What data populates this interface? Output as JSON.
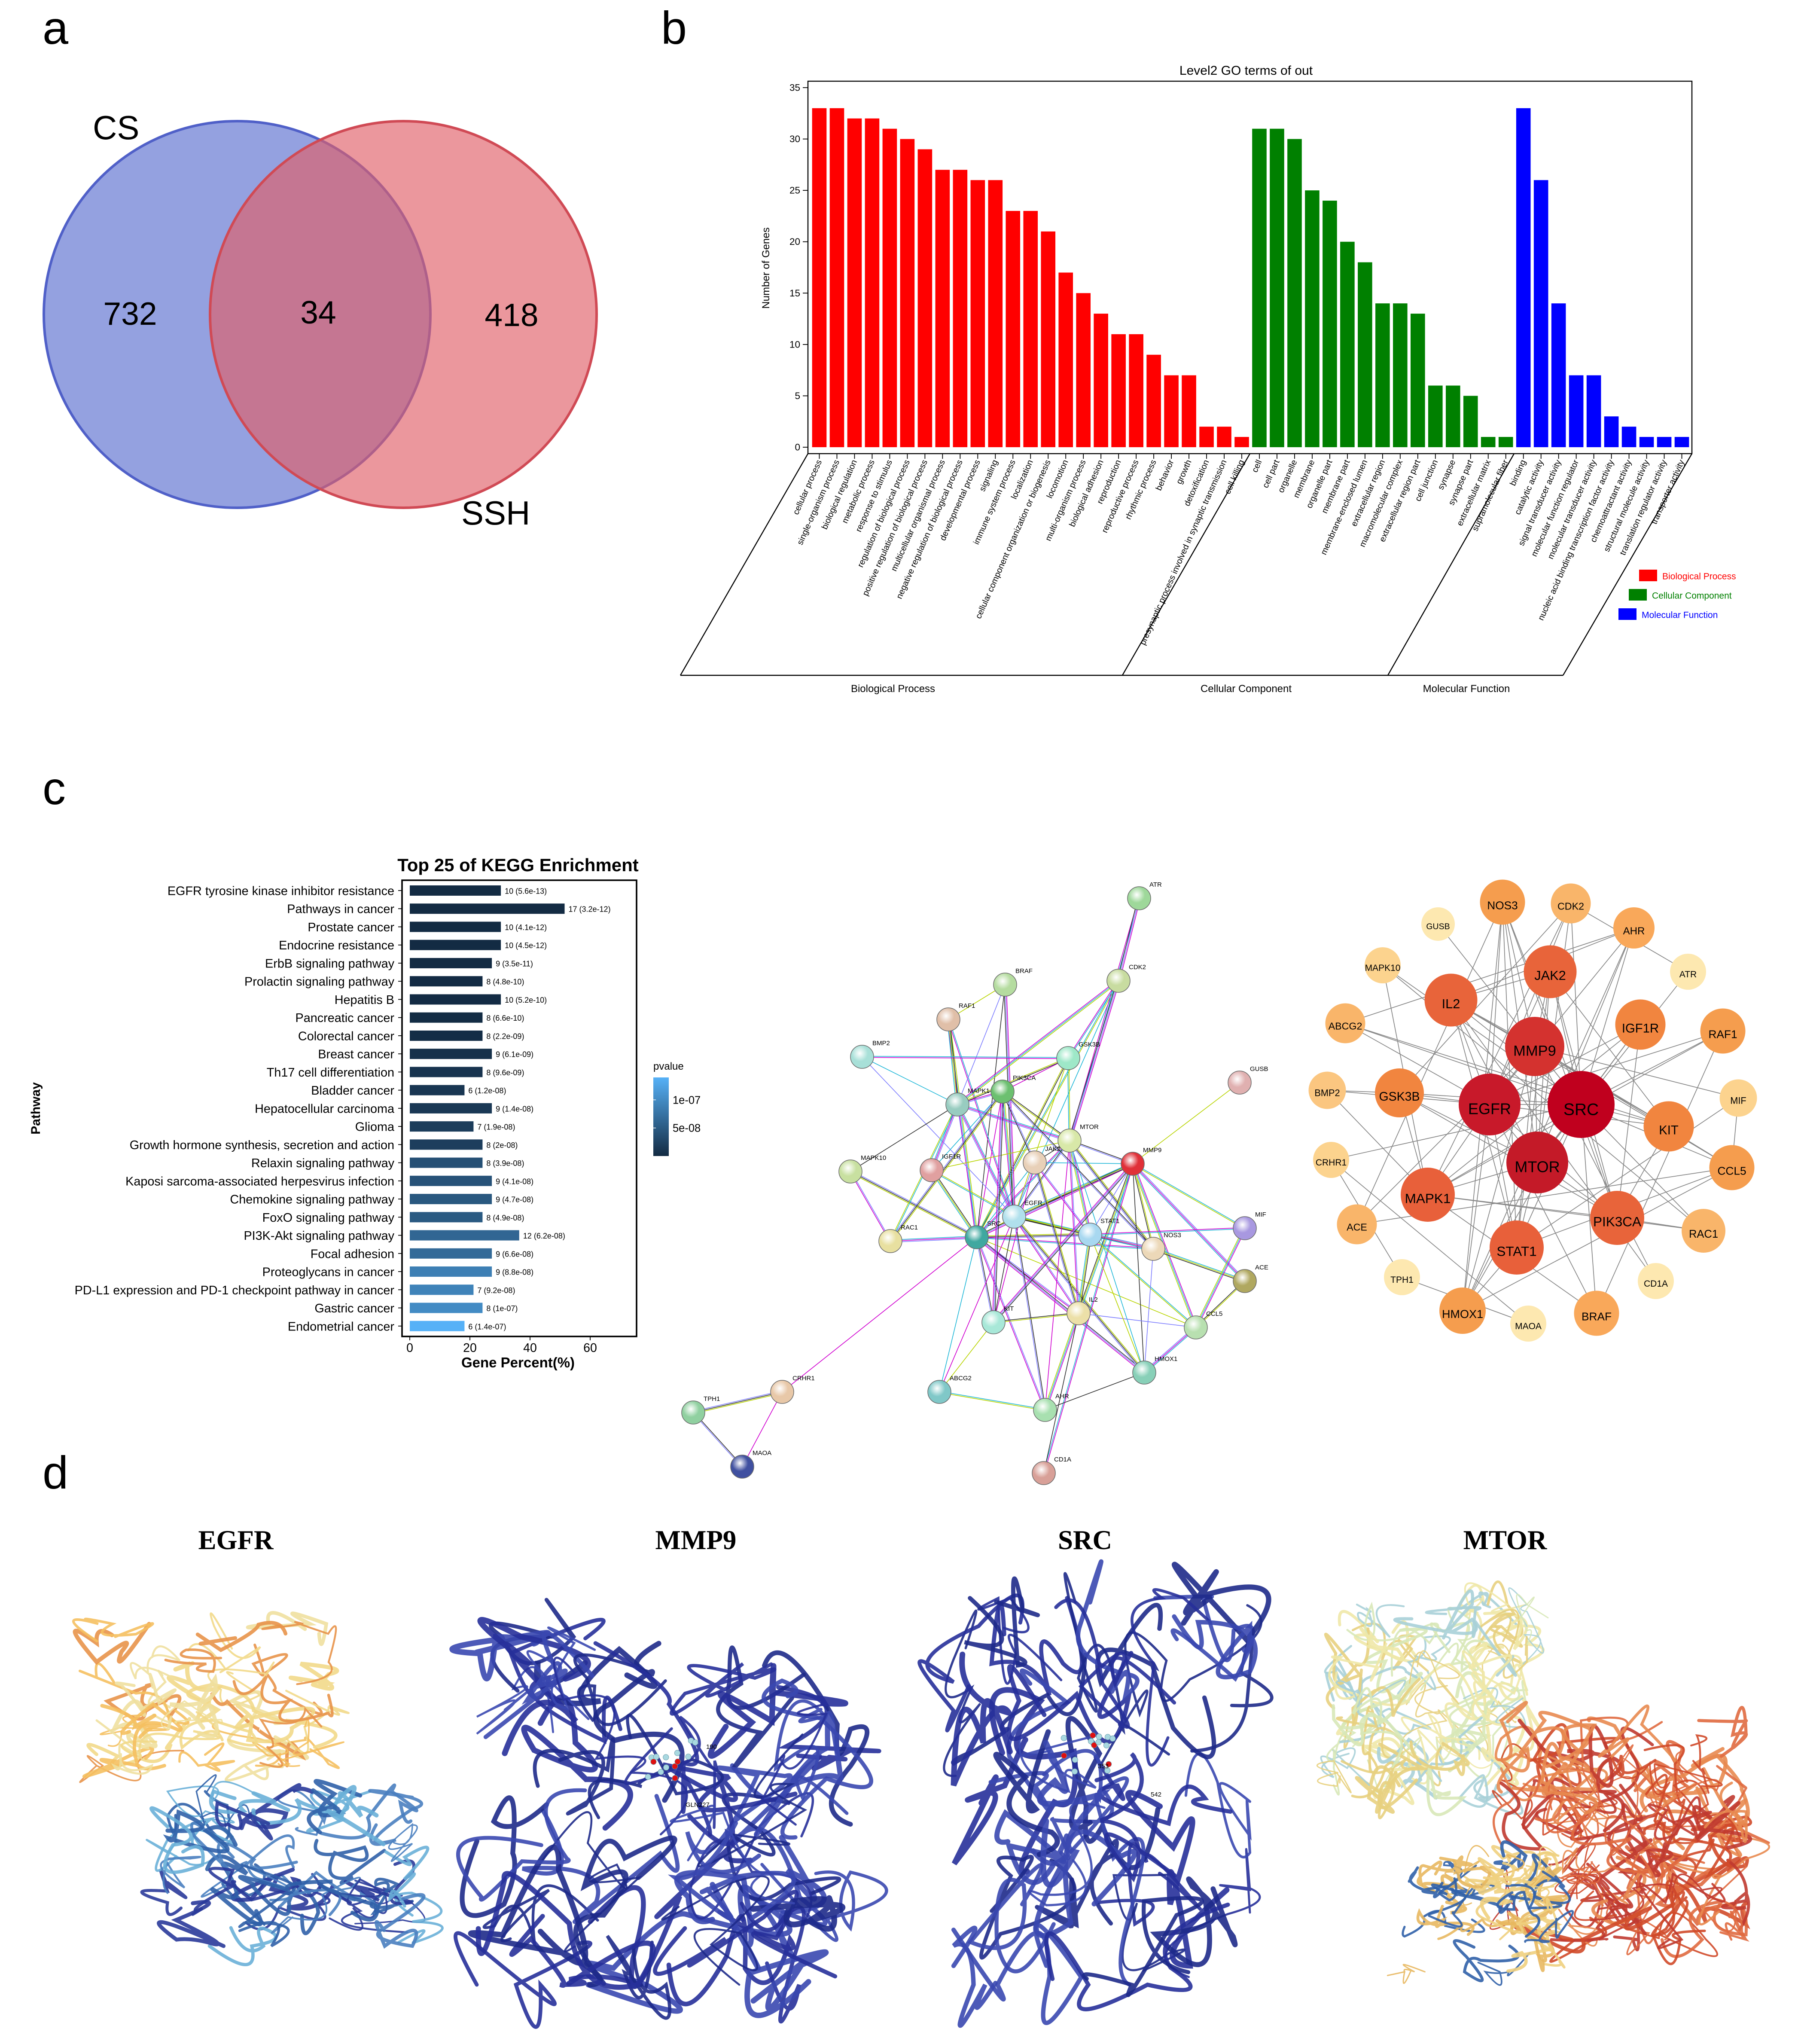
{
  "panels": {
    "a": "a",
    "b": "b",
    "c": "c",
    "d": "d"
  },
  "venn": {
    "sets": [
      {
        "name": "CS",
        "only_count": "732",
        "color": "#5b6fd0"
      },
      {
        "name": "SSH",
        "only_count": "418",
        "color": "#e06068"
      }
    ],
    "intersection": "34"
  },
  "chart_data": [
    {
      "type": "bar",
      "title": "Level2 GO terms of out",
      "ylabel": "Number of Genes",
      "ylim": [
        0,
        35
      ],
      "yticks": [
        0,
        5,
        10,
        15,
        20,
        25,
        30,
        35
      ],
      "grid": false,
      "legend_position": "bottom-right",
      "series": [
        {
          "name": "Biological Process",
          "color": "#ff0000",
          "categories": [
            "cellular process",
            "single-organism process",
            "biological regulation",
            "metabolic process",
            "response to stimulus",
            "regulation of biological process",
            "positive regulation of biological process",
            "multicellular organismal process",
            "negative regulation of biological process",
            "developmental process",
            "signaling",
            "immune system process",
            "localization",
            "cellular component organization or biogenesis",
            "locomotion",
            "multi-organism process",
            "biological adhesion",
            "reproduction",
            "reproductive process",
            "rhythmic process",
            "behavior",
            "growth",
            "detoxification",
            "presynaptic process involved in synaptic transmission",
            "cell killing"
          ],
          "values": [
            33,
            33,
            32,
            32,
            31,
            30,
            29,
            27,
            27,
            26,
            26,
            23,
            23,
            21,
            17,
            15,
            13,
            11,
            11,
            9,
            7,
            7,
            2,
            2,
            1
          ]
        },
        {
          "name": "Cellular Component",
          "color": "#008000",
          "categories": [
            "cell",
            "cell part",
            "organelle",
            "membrane",
            "organelle part",
            "membrane part",
            "membrane-enclosed lumen",
            "extracellular region",
            "macromolecular complex",
            "extracellular region part",
            "cell junction",
            "synapse",
            "synapse part",
            "extracellular matrix",
            "supramolecular fiber"
          ],
          "values": [
            31,
            31,
            30,
            25,
            24,
            20,
            18,
            14,
            14,
            13,
            6,
            6,
            5,
            1,
            1
          ]
        },
        {
          "name": "Molecular Function",
          "color": "#0000ff",
          "categories": [
            "binding",
            "catalytic activity",
            "signal transducer activity",
            "molecular function regulator",
            "molecular transducer activity",
            "nucleic acid binding transcription factor activity",
            "chemoattractant activity",
            "structural molecule activity",
            "translation regulator activity",
            "transporter activity"
          ],
          "values": [
            33,
            26,
            14,
            7,
            7,
            3,
            2,
            1,
            1,
            1
          ]
        }
      ]
    },
    {
      "type": "bar",
      "orientation": "horizontal",
      "title": "Top 25 of KEGG Enrichment",
      "xlabel": "Gene Percent(%)",
      "ylabel": "Pathway",
      "xticks": [
        0,
        20,
        40,
        60
      ],
      "xlim": [
        0,
        75
      ],
      "color_legend": {
        "title": "pvalue",
        "ticks": [
          "1e-07",
          "5e-08"
        ],
        "tick_values": [
          1e-07,
          5e-08
        ],
        "low_color": "#132b43",
        "high_color": "#56b1f7"
      },
      "categories": [
        "EGFR tyrosine kinase inhibitor resistance",
        "Pathways in cancer",
        "Prostate cancer",
        "Endocrine resistance",
        "ErbB signaling pathway",
        "Prolactin signaling pathway",
        "Hepatitis B",
        "Pancreatic cancer",
        "Colorectal cancer",
        "Breast cancer",
        "Th17 cell differentiation",
        "Bladder cancer",
        "Hepatocellular carcinoma",
        "Glioma",
        "Growth hormone synthesis, secretion and action",
        "Relaxin signaling pathway",
        "Kaposi sarcoma-associated herpesvirus infection",
        "Chemokine signaling pathway",
        "FoxO signaling pathway",
        "PI3K-Akt signaling pathway",
        "Focal adhesion",
        "Proteoglycans in cancer",
        "PD-L1 expression and PD-1 checkpoint pathway in cancer",
        "Gastric cancer",
        "Endometrial cancer"
      ],
      "counts": [
        10,
        17,
        10,
        10,
        9,
        8,
        10,
        8,
        8,
        9,
        8,
        6,
        9,
        7,
        8,
        8,
        9,
        9,
        8,
        12,
        9,
        9,
        7,
        8,
        6
      ],
      "gene_percent": [
        30.3,
        51.5,
        30.3,
        30.3,
        27.3,
        24.2,
        30.3,
        24.2,
        24.2,
        27.3,
        24.2,
        18.2,
        27.3,
        21.2,
        24.2,
        24.2,
        27.3,
        27.3,
        24.2,
        36.4,
        27.3,
        27.3,
        21.2,
        24.2,
        18.2
      ],
      "pvalues": [
        5.6e-13,
        3.2e-12,
        4.1e-12,
        4.5e-12,
        3.5e-11,
        4.8e-10,
        5.2e-10,
        6.6e-10,
        2.2e-09,
        6.1e-09,
        9.6e-09,
        1.2e-08,
        1.4e-08,
        1.9e-08,
        2e-08,
        3.9e-08,
        4.1e-08,
        4.7e-08,
        4.9e-08,
        6.2e-08,
        6.6e-08,
        8.8e-08,
        9.2e-08,
        1e-07,
        1.4e-07
      ],
      "bar_labels": [
        "10 (5.6e-13)",
        "17 (3.2e-12)",
        "10 (4.1e-12)",
        "10 (4.5e-12)",
        "9 (3.5e-11)",
        "8 (4.8e-10)",
        "10 (5.2e-10)",
        "8 (6.6e-10)",
        "8 (2.2e-09)",
        "9 (6.1e-09)",
        "8 (9.6e-09)",
        "6 (1.2e-08)",
        "9 (1.4e-08)",
        "7 (1.9e-08)",
        "8 (2e-08)",
        "8 (3.9e-08)",
        "9 (4.1e-08)",
        "9 (4.7e-08)",
        "8 (4.9e-08)",
        "12 (6.2e-08)",
        "9 (6.6e-08)",
        "9 (8.8e-08)",
        "7 (9.2e-08)",
        "8 (1e-07)",
        "6 (1.4e-07)"
      ]
    }
  ],
  "ppi_network": {
    "string_edge_colors": [
      "#b8d400",
      "#d000d0",
      "#333333",
      "#22b8d8",
      "#8080ff"
    ],
    "nodes": [
      {
        "id": "ATR",
        "string_color": "#9ed89a",
        "hub_color": "#fde8b0"
      },
      {
        "id": "CDK2",
        "string_color": "#c8dca0",
        "hub_color": "#f9b56a"
      },
      {
        "id": "BRAF",
        "string_color": "#b5dca0",
        "hub_color": "#f9a85a"
      },
      {
        "id": "RAF1",
        "string_color": "#e0bfa8",
        "hub_color": "#f59d4e"
      },
      {
        "id": "BMP2",
        "string_color": "#a8e0d8",
        "hub_color": "#fbc680"
      },
      {
        "id": "GSK3B",
        "string_color": "#9ee8c8",
        "hub_color": "#f1853f"
      },
      {
        "id": "PIK3CA",
        "string_color": "#6cc070",
        "hub_color": "#e8643a"
      },
      {
        "id": "MAPK1",
        "string_color": "#98ccc0",
        "hub_color": "#e8603a"
      },
      {
        "id": "MTOR",
        "string_color": "#d8e8a8",
        "hub_color": "#c41a28"
      },
      {
        "id": "JAK2",
        "string_color": "#e8d0b8",
        "hub_color": "#e8643a"
      },
      {
        "id": "IGF1R",
        "string_color": "#e0a0a0",
        "hub_color": "#f1853f"
      },
      {
        "id": "MAPK10",
        "string_color": "#c8e0a0",
        "hub_color": "#fcd38e"
      },
      {
        "id": "MMP9",
        "string_color": "#e03038",
        "hub_color": "#d4322f"
      },
      {
        "id": "GUSB",
        "string_color": "#e0b0b0",
        "hub_color": "#fde8b0"
      },
      {
        "id": "EGFR",
        "string_color": "#b0e0ec",
        "hub_color": "#c8192a"
      },
      {
        "id": "SRC",
        "string_color": "#40a8a0",
        "hub_color": "#c0001e"
      },
      {
        "id": "STAT1",
        "string_color": "#a8d8f0",
        "hub_color": "#e8603a"
      },
      {
        "id": "RAC1",
        "string_color": "#e8e0a0",
        "hub_color": "#f9b56a"
      },
      {
        "id": "NOS3",
        "string_color": "#ecd8b8",
        "hub_color": "#f59d4e"
      },
      {
        "id": "MIF",
        "string_color": "#a898e0",
        "hub_color": "#fcd38e"
      },
      {
        "id": "ACE",
        "string_color": "#b0a860",
        "hub_color": "#f9b56a"
      },
      {
        "id": "KIT",
        "string_color": "#a8e8d8",
        "hub_color": "#f1853f"
      },
      {
        "id": "IL2",
        "string_color": "#ece0a8",
        "hub_color": "#e8643a"
      },
      {
        "id": "CCL5",
        "string_color": "#b8e0b0",
        "hub_color": "#f59d4e"
      },
      {
        "id": "HMOX1",
        "string_color": "#88d0b8",
        "hub_color": "#f59d4e"
      },
      {
        "id": "ABCG2",
        "string_color": "#80c8c8",
        "hub_color": "#f9b56a"
      },
      {
        "id": "AHR",
        "string_color": "#a8e0b0",
        "hub_color": "#f9a85a"
      },
      {
        "id": "CD1A",
        "string_color": "#d8a098",
        "hub_color": "#fde8b0"
      },
      {
        "id": "CRHR1",
        "string_color": "#e8c8a8",
        "hub_color": "#fcd38e"
      },
      {
        "id": "TPH1",
        "string_color": "#90d0a0",
        "hub_color": "#fde8b0"
      },
      {
        "id": "MAOA",
        "string_color": "#4050a0",
        "hub_color": "#fde8b0"
      }
    ],
    "edges": [
      [
        "SRC",
        "EGFR"
      ],
      [
        "SRC",
        "MTOR"
      ],
      [
        "SRC",
        "MMP9"
      ],
      [
        "SRC",
        "JAK2"
      ],
      [
        "SRC",
        "IL2"
      ],
      [
        "SRC",
        "STAT1"
      ],
      [
        "SRC",
        "PIK3CA"
      ],
      [
        "SRC",
        "KIT"
      ],
      [
        "SRC",
        "IGF1R"
      ],
      [
        "SRC",
        "MAPK1"
      ],
      [
        "SRC",
        "GSK3B"
      ],
      [
        "SRC",
        "RAF1"
      ],
      [
        "SRC",
        "BRAF"
      ],
      [
        "SRC",
        "CDK2"
      ],
      [
        "SRC",
        "RAC1"
      ],
      [
        "SRC",
        "CCL5"
      ],
      [
        "SRC",
        "NOS3"
      ],
      [
        "SRC",
        "HMOX1"
      ],
      [
        "SRC",
        "ABCG2"
      ],
      [
        "SRC",
        "AHR"
      ],
      [
        "SRC",
        "MAPK10"
      ],
      [
        "SRC",
        "CRHR1"
      ],
      [
        "EGFR",
        "MTOR"
      ],
      [
        "EGFR",
        "MMP9"
      ],
      [
        "EGFR",
        "JAK2"
      ],
      [
        "EGFR",
        "STAT1"
      ],
      [
        "EGFR",
        "PIK3CA"
      ],
      [
        "EGFR",
        "KIT"
      ],
      [
        "EGFR",
        "IGF1R"
      ],
      [
        "EGFR",
        "MAPK1"
      ],
      [
        "EGFR",
        "GSK3B"
      ],
      [
        "EGFR",
        "RAF1"
      ],
      [
        "EGFR",
        "BRAF"
      ],
      [
        "EGFR",
        "CDK2"
      ],
      [
        "EGFR",
        "IL2"
      ],
      [
        "EGFR",
        "HMOX1"
      ],
      [
        "EGFR",
        "ABCG2"
      ],
      [
        "EGFR",
        "AHR"
      ],
      [
        "EGFR",
        "NOS3"
      ],
      [
        "EGFR",
        "BMP2"
      ],
      [
        "MTOR",
        "PIK3CA"
      ],
      [
        "MTOR",
        "STAT1"
      ],
      [
        "MTOR",
        "JAK2"
      ],
      [
        "MTOR",
        "GSK3B"
      ],
      [
        "MTOR",
        "MAPK1"
      ],
      [
        "MTOR",
        "IGF1R"
      ],
      [
        "MTOR",
        "ATR"
      ],
      [
        "MTOR",
        "CDK2"
      ],
      [
        "MTOR",
        "HMOX1"
      ],
      [
        "MTOR",
        "IL2"
      ],
      [
        "MTOR",
        "NOS3"
      ],
      [
        "MTOR",
        "AHR"
      ],
      [
        "MTOR",
        "MMP9"
      ],
      [
        "MMP9",
        "IL2"
      ],
      [
        "MMP9",
        "STAT1"
      ],
      [
        "MMP9",
        "NOS3"
      ],
      [
        "MMP9",
        "CCL5"
      ],
      [
        "MMP9",
        "HMOX1"
      ],
      [
        "MMP9",
        "MIF"
      ],
      [
        "MMP9",
        "ACE"
      ],
      [
        "MMP9",
        "GUSB"
      ],
      [
        "MMP9",
        "CD1A"
      ],
      [
        "MMP9",
        "KIT"
      ],
      [
        "MMP9",
        "JAK2"
      ],
      [
        "JAK2",
        "STAT1"
      ],
      [
        "JAK2",
        "IL2"
      ],
      [
        "JAK2",
        "KIT"
      ],
      [
        "JAK2",
        "PIK3CA"
      ],
      [
        "IL2",
        "STAT1"
      ],
      [
        "IL2",
        "CCL5"
      ],
      [
        "IL2",
        "KIT"
      ],
      [
        "IL2",
        "AHR"
      ],
      [
        "IL2",
        "CD1A"
      ],
      [
        "STAT1",
        "CCL5"
      ],
      [
        "STAT1",
        "NOS3"
      ],
      [
        "STAT1",
        "HMOX1"
      ],
      [
        "STAT1",
        "MIF"
      ],
      [
        "PIK3CA",
        "KIT"
      ],
      [
        "PIK3CA",
        "IGF1R"
      ],
      [
        "PIK3CA",
        "MAPK1"
      ],
      [
        "PIK3CA",
        "RAC1"
      ],
      [
        "PIK3CA",
        "GSK3B"
      ],
      [
        "PIK3CA",
        "NOS3"
      ],
      [
        "MAPK1",
        "RAF1"
      ],
      [
        "MAPK1",
        "BRAF"
      ],
      [
        "MAPK1",
        "GSK3B"
      ],
      [
        "MAPK1",
        "CDK2"
      ],
      [
        "MAPK1",
        "MAPK10"
      ],
      [
        "MAPK1",
        "RAC1"
      ],
      [
        "MAPK1",
        "IGF1R"
      ],
      [
        "RAF1",
        "BRAF"
      ],
      [
        "GSK3B",
        "CDK2"
      ],
      [
        "CDK2",
        "ATR"
      ],
      [
        "BMP2",
        "MAPK1"
      ],
      [
        "MAPK10",
        "RAC1"
      ],
      [
        "CRHR1",
        "TPH1"
      ],
      [
        "CRHR1",
        "MAOA"
      ],
      [
        "TPH1",
        "MAOA"
      ],
      [
        "NOS3",
        "ACE"
      ],
      [
        "NOS3",
        "HMOX1"
      ],
      [
        "ACE",
        "CCL5"
      ],
      [
        "MIF",
        "CCL5"
      ],
      [
        "AHR",
        "HMOX1"
      ],
      [
        "ABCG2",
        "AHR"
      ],
      [
        "HMOX1",
        "CCL5"
      ],
      [
        "KIT",
        "ABCG2"
      ],
      [
        "GSK3B",
        "BMP2"
      ]
    ]
  },
  "docking": {
    "structures": [
      {
        "protein": "EGFR",
        "residue_labels": []
      },
      {
        "protein": "MMP9",
        "residue_labels": [
          "190",
          "GLN227"
        ]
      },
      {
        "protein": "SRC",
        "residue_labels": [
          "353",
          "542"
        ]
      },
      {
        "protein": "MTOR",
        "residue_labels": []
      }
    ]
  }
}
